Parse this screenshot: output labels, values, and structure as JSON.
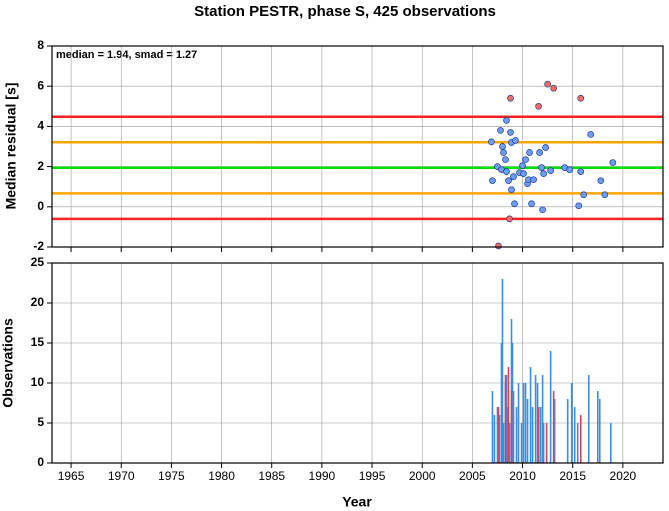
{
  "chart_data": [
    {
      "type": "scatter",
      "title": "Station PESTR, phase S, 425 observations",
      "y_label": "Median residual [s]",
      "annotation": "median = 1.94, smad = 1.27",
      "xlim": [
        1963.1,
        2024
      ],
      "xticks": [
        1965,
        1970,
        1975,
        1980,
        1985,
        1990,
        1995,
        2000,
        2005,
        2010,
        2015,
        2020
      ],
      "ylim": [
        -2,
        8
      ],
      "yticks": [
        -2,
        0,
        2,
        4,
        6,
        8
      ],
      "grid": true,
      "reference_lines": [
        {
          "value": 4.48,
          "color": "#ff2020"
        },
        {
          "value": 3.21,
          "color": "#ffa500"
        },
        {
          "value": 1.94,
          "color": "#00e000"
        },
        {
          "value": 0.67,
          "color": "#ffa500"
        },
        {
          "value": -0.6,
          "color": "#ff2020"
        }
      ],
      "series": [
        {
          "color": "#6f9cf5",
          "x": [
            2006.9,
            2007.0,
            2007.5,
            2007.8,
            2007.9,
            2008.0,
            2008.1,
            2008.3,
            2008.4,
            2008.4,
            2008.6,
            2008.8,
            2008.9,
            2008.9,
            2009.1,
            2009.2,
            2009.3,
            2009.7,
            2010.0,
            2010.1,
            2010.3,
            2010.5,
            2010.6,
            2010.7,
            2010.9,
            2011.1,
            2011.7,
            2011.9,
            2012.0,
            2012.1,
            2012.3,
            2012.8,
            2014.2,
            2014.7,
            2015.6,
            2015.8,
            2016.1,
            2016.8,
            2017.8,
            2018.2,
            2019.0
          ],
          "values": [
            3.23,
            1.3,
            2.0,
            3.8,
            1.85,
            3.0,
            2.7,
            2.35,
            4.3,
            1.75,
            1.3,
            3.7,
            3.2,
            0.85,
            1.5,
            0.15,
            3.3,
            1.7,
            2.05,
            1.65,
            2.35,
            1.15,
            1.35,
            2.7,
            0.15,
            1.35,
            2.7,
            1.95,
            -0.15,
            1.65,
            2.95,
            1.8,
            1.95,
            1.85,
            0.05,
            1.75,
            0.6,
            3.6,
            1.3,
            0.6,
            2.2
          ]
        },
        {
          "color": "#f86a5e",
          "x": [
            2007.6,
            2008.7,
            2008.8,
            2011.6,
            2012.5,
            2013.1,
            2015.8
          ],
          "values": [
            -1.95,
            -0.6,
            5.4,
            5.0,
            6.1,
            5.9,
            5.4
          ]
        }
      ]
    },
    {
      "type": "bar",
      "x_label": "Year",
      "y_label": "Observations",
      "xlim": [
        1963.1,
        2024
      ],
      "xticks": [
        1965,
        1970,
        1975,
        1980,
        1985,
        1990,
        1995,
        2000,
        2005,
        2010,
        2015,
        2020
      ],
      "ylim": [
        0,
        25
      ],
      "yticks": [
        0,
        5,
        10,
        15,
        20,
        25
      ],
      "grid": true,
      "series": [
        {
          "color": "#3a8ee0",
          "x": [
            2007.0,
            2007.2,
            2007.5,
            2007.7,
            2007.9,
            2008.0,
            2008.1,
            2008.3,
            2008.4,
            2008.5,
            2008.7,
            2008.9,
            2009.0,
            2009.1,
            2009.4,
            2009.6,
            2009.9,
            2010.1,
            2010.3,
            2010.5,
            2010.8,
            2011.0,
            2011.3,
            2011.5,
            2011.8,
            2012.0,
            2012.1,
            2012.8,
            2013.2,
            2014.5,
            2014.9,
            2015.2,
            2015.5,
            2016.6,
            2017.5,
            2017.7,
            2018.8
          ],
          "values": [
            9,
            6,
            7,
            6,
            15,
            23,
            5,
            10,
            11,
            7,
            5,
            18,
            15,
            9,
            7,
            10,
            5,
            10,
            10,
            8,
            12,
            7,
            11,
            10,
            7,
            11,
            5,
            14,
            8,
            8,
            10,
            7,
            5,
            11,
            9,
            8,
            5
          ]
        },
        {
          "color": "#d0455a",
          "x": [
            2007.6,
            2008.3,
            2008.6,
            2008.9,
            2011.6,
            2012.4,
            2013.1,
            2015.8
          ],
          "values": [
            7,
            11,
            12,
            9,
            7,
            5,
            9,
            6
          ]
        }
      ]
    }
  ]
}
